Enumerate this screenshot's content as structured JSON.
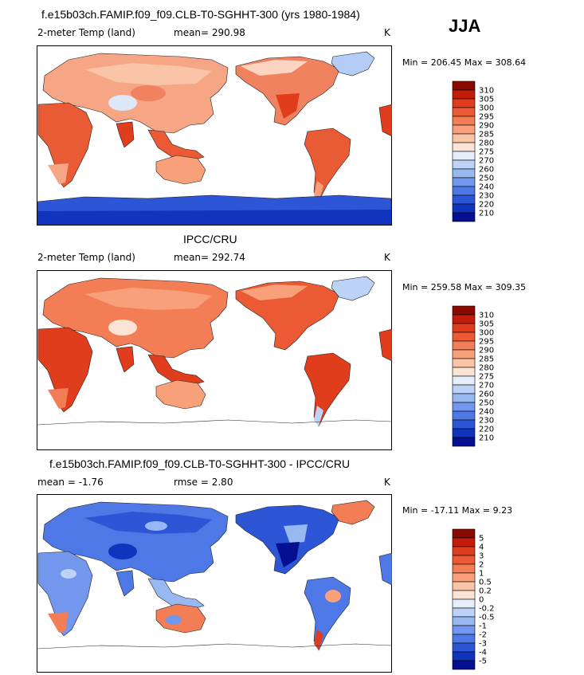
{
  "season": "JJA",
  "panels": [
    {
      "title": "f.e15b03ch.FAMIP.f09_f09.CLB-T0-SGHHT-300 (yrs 1980-1984)",
      "left_label": "2-meter Temp (land)",
      "mean_text": "mean= 290.98",
      "unit": "K",
      "minmax": "Min = 206.45 Max = 308.64"
    },
    {
      "title": "IPCC/CRU",
      "left_label": "2-meter Temp (land)",
      "mean_text": "mean= 292.74",
      "unit": "K",
      "minmax": "Min = 259.58 Max = 309.35"
    },
    {
      "title": "f.e15b03ch.FAMIP.f09_f09.CLB-T0-SGHHT-300 - IPCC/CRU",
      "left_label": "mean =   -1.76",
      "mean_text": "rmse =    2.80",
      "unit": "K",
      "minmax": "Min = -17.11 Max =   9.23"
    }
  ],
  "colorbars": {
    "temperature": {
      "labels": [
        "310",
        "305",
        "300",
        "295",
        "290",
        "285",
        "280",
        "275",
        "270",
        "260",
        "250",
        "240",
        "230",
        "220",
        "210"
      ],
      "colors": [
        "#8b0a00",
        "#c21c0a",
        "#e03d1c",
        "#eb5a35",
        "#f37d55",
        "#f8a07a",
        "#fac4a6",
        "#fbe3d5",
        "#e6eefc",
        "#bcd2f7",
        "#98b8f2",
        "#7297ec",
        "#4e78e6",
        "#2d56d6",
        "#1134bf",
        "#04108f"
      ]
    },
    "difference": {
      "labels": [
        "5",
        "4",
        "3",
        "2",
        "1",
        "0.5",
        "0.2",
        "0",
        "-0.2",
        "-0.5",
        "-1",
        "-2",
        "-3",
        "-4",
        "-5"
      ],
      "colors": [
        "#8b0a00",
        "#c21c0a",
        "#e03d1c",
        "#eb5a35",
        "#f37d55",
        "#f8a07a",
        "#fac4a6",
        "#fbe3d5",
        "#e6eefc",
        "#bcd2f7",
        "#98b8f2",
        "#7297ec",
        "#4e78e6",
        "#2d56d6",
        "#1134bf",
        "#04108f"
      ]
    }
  }
}
